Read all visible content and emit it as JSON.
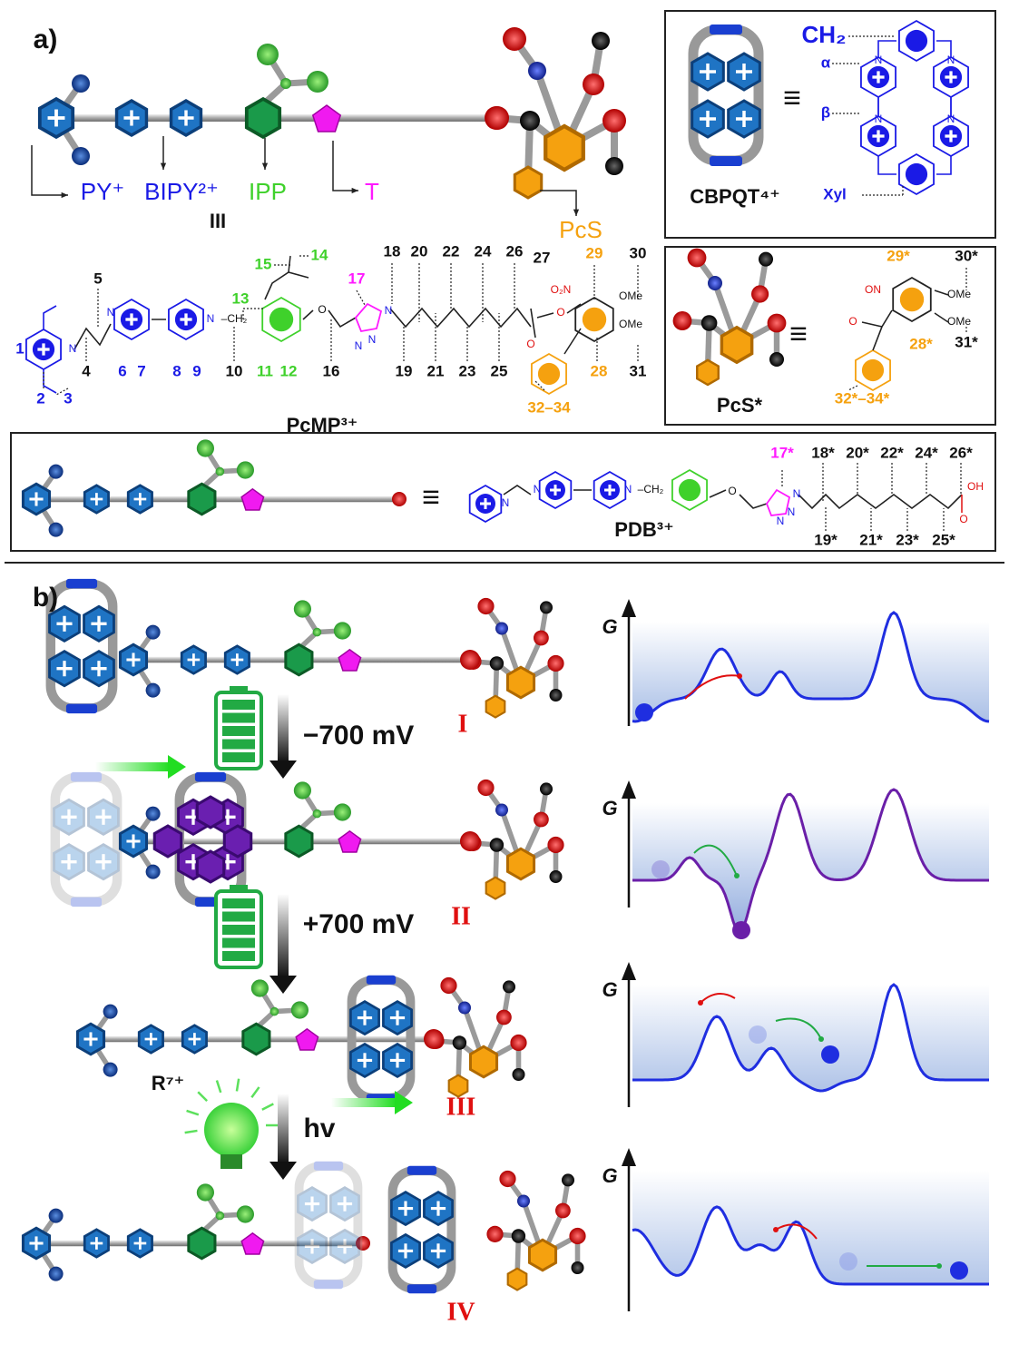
{
  "panel_a": {
    "label": "a)",
    "cartoon": {
      "parts": [
        "PY⁺",
        "BIPY²⁺",
        "IPP",
        "T",
        "PcS"
      ],
      "state": "III"
    },
    "pcmp": {
      "name": "PcMP³⁺",
      "numbers": [
        "1",
        "2",
        "3",
        "4",
        "5",
        "6",
        "7",
        "8",
        "9",
        "10",
        "11",
        "12",
        "13",
        "14",
        "15",
        "16",
        "17",
        "18",
        "19",
        "20",
        "21",
        "22",
        "23",
        "24",
        "25",
        "26",
        "27",
        "28",
        "29",
        "30",
        "31",
        "32–34"
      ],
      "atoms": [
        "N",
        "N",
        "N",
        "–CH₂",
        "O",
        "N",
        "N",
        "N",
        "O",
        "O",
        "O₂N",
        "OMe",
        "OMe"
      ]
    },
    "cbpqt": {
      "name": "CBPQT⁴⁺",
      "equiv": "≡",
      "labels": [
        "CH₂",
        "α",
        "β",
        "Xyl"
      ],
      "atoms": [
        "N",
        "N",
        "N",
        "N"
      ]
    },
    "pcs": {
      "name": "PcS*",
      "equiv": "≡",
      "numbers": [
        "29*",
        "30*",
        "28*",
        "31*",
        "32*–34*"
      ],
      "atoms": [
        "ON",
        "O",
        "OMe",
        "OMe"
      ]
    },
    "pdb": {
      "name": "PDB³⁺",
      "equiv": "≡",
      "numbers": [
        "17*",
        "18*",
        "20*",
        "22*",
        "24*",
        "26*",
        "19*",
        "21*",
        "23*",
        "25*"
      ],
      "atoms": [
        "N",
        "N",
        "N",
        "–CH₂",
        "O",
        "N",
        "N",
        "N",
        "OH",
        "O"
      ]
    }
  },
  "panel_b": {
    "label": "b)",
    "states": [
      "I",
      "II",
      "III",
      "IV"
    ],
    "potentials": [
      "−700 mV",
      "+700 mV"
    ],
    "light": "hv",
    "rotaxane": "R⁷⁺",
    "energy_axis": "G"
  }
}
